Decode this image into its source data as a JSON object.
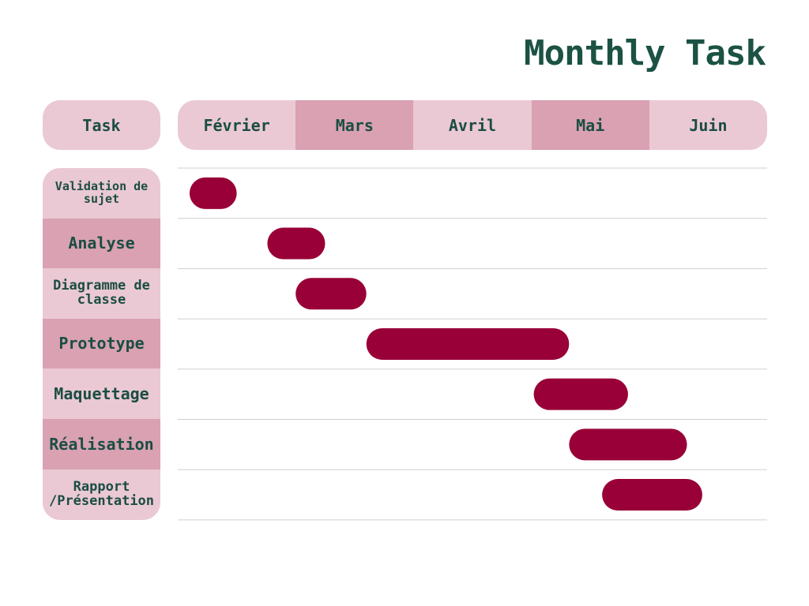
{
  "title": "Monthly Task",
  "task_header": "Task",
  "colors": {
    "title": "#1b5244",
    "text": "#1b4d42",
    "light_cell": "#eac9d4",
    "dark_cell": "#d9a1b2",
    "bar": "#990037",
    "gridline": "#cfcfcf"
  },
  "chart_data": {
    "type": "gantt",
    "title": "Monthly Task",
    "xlabel": "",
    "ylabel": "Task",
    "categories": [
      "Février",
      "Mars",
      "Avril",
      "Mai",
      "Juin"
    ],
    "x_range": [
      0,
      5
    ],
    "tasks": [
      {
        "label": "Validation de sujet",
        "start": 0.1,
        "end": 0.5
      },
      {
        "label": "Analyse",
        "start": 0.76,
        "end": 1.25
      },
      {
        "label": "Diagramme de classe",
        "start": 1.0,
        "end": 1.6
      },
      {
        "label": "Prototype",
        "start": 1.6,
        "end": 3.32
      },
      {
        "label": "Maquettage",
        "start": 3.02,
        "end": 3.82
      },
      {
        "label": "Réalisation",
        "start": 3.32,
        "end": 4.32
      },
      {
        "label": "Rapport /Présentation",
        "start": 3.6,
        "end": 4.45
      }
    ]
  }
}
